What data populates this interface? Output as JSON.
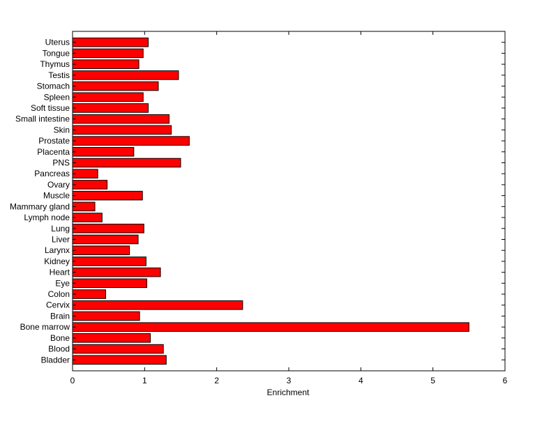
{
  "chart_data": {
    "type": "bar",
    "orientation": "horizontal",
    "title": "",
    "xlabel": "Enrichment",
    "ylabel": "",
    "xlim": [
      0,
      6
    ],
    "xticks": [
      0,
      1,
      2,
      3,
      4,
      5,
      6
    ],
    "grid": false,
    "bar_color": "#ff0000",
    "bar_edge_color": "#000000",
    "categories": [
      "Bladder",
      "Blood",
      "Bone",
      "Bone marrow",
      "Brain",
      "Cervix",
      "Colon",
      "Eye",
      "Heart",
      "Kidney",
      "Larynx",
      "Liver",
      "Lung",
      "Lymph node",
      "Mammary gland",
      "Muscle",
      "Ovary",
      "Pancreas",
      "PNS",
      "Placenta",
      "Prostate",
      "Skin",
      "Small intestine",
      "Soft tissue",
      "Spleen",
      "Stomach",
      "Testis",
      "Thymus",
      "Tongue",
      "Uterus"
    ],
    "values": [
      1.3,
      1.26,
      1.08,
      5.5,
      0.93,
      2.36,
      0.46,
      1.03,
      1.22,
      1.02,
      0.79,
      0.91,
      0.99,
      0.41,
      0.31,
      0.97,
      0.48,
      0.35,
      1.5,
      0.85,
      1.62,
      1.37,
      1.34,
      1.05,
      0.98,
      1.19,
      1.47,
      0.92,
      0.98,
      1.05
    ]
  }
}
